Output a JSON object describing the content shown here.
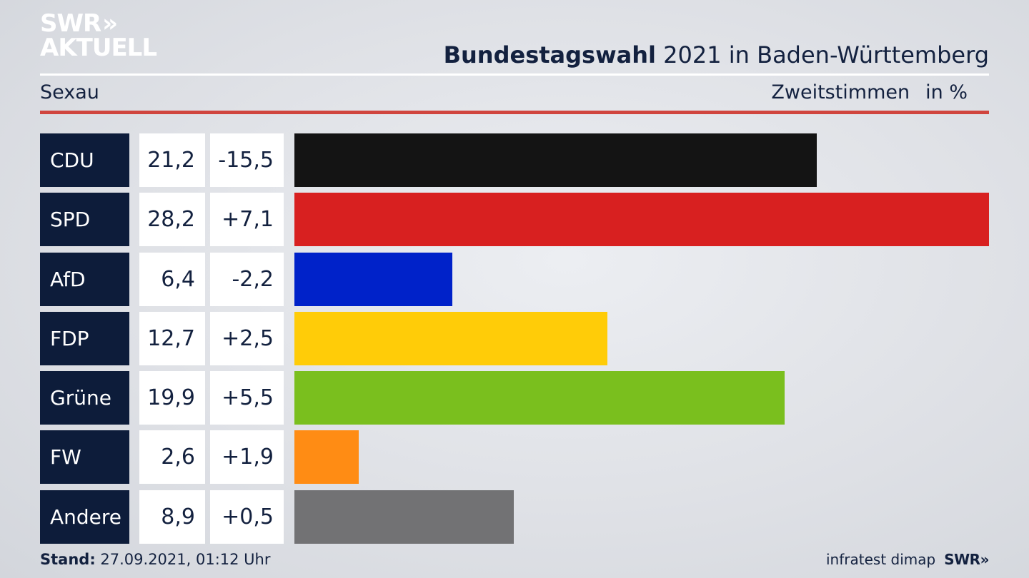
{
  "brand": {
    "line1": "SWR",
    "chevrons": "»",
    "line2": "AKTUELL"
  },
  "header": {
    "title_bold": "Bundestagswahl",
    "title_rest": " 2021 in Baden-Württemberg",
    "place": "Sexau",
    "measure": "Zweitstimmen",
    "unit": "in %"
  },
  "colors": {
    "accent_rule": "#d0453e",
    "party_box": "#0d1c3a"
  },
  "chart_data": {
    "type": "bar",
    "categories": [
      "CDU",
      "SPD",
      "AfD",
      "FDP",
      "Grüne",
      "FW",
      "Andere"
    ],
    "values": [
      "21,2",
      "28,2",
      "6,4",
      "12,7",
      "19,9",
      "2,6",
      "8,9"
    ],
    "changes": [
      "-15,5",
      "+7,1",
      "-2,2",
      "+2,5",
      "+5,5",
      "+1,9",
      "+0,5"
    ],
    "colors": [
      "#141414",
      "#d82020",
      "#0022c9",
      "#ffcc08",
      "#7abf1e",
      "#ff8c14",
      "#727274"
    ],
    "xlim": [
      0,
      28.2
    ]
  },
  "footer": {
    "stand_label": "Stand:",
    "stand_value": " 27.09.2021, 01:12 Uhr",
    "source": "infratest dimap",
    "logo": "SWR»"
  }
}
